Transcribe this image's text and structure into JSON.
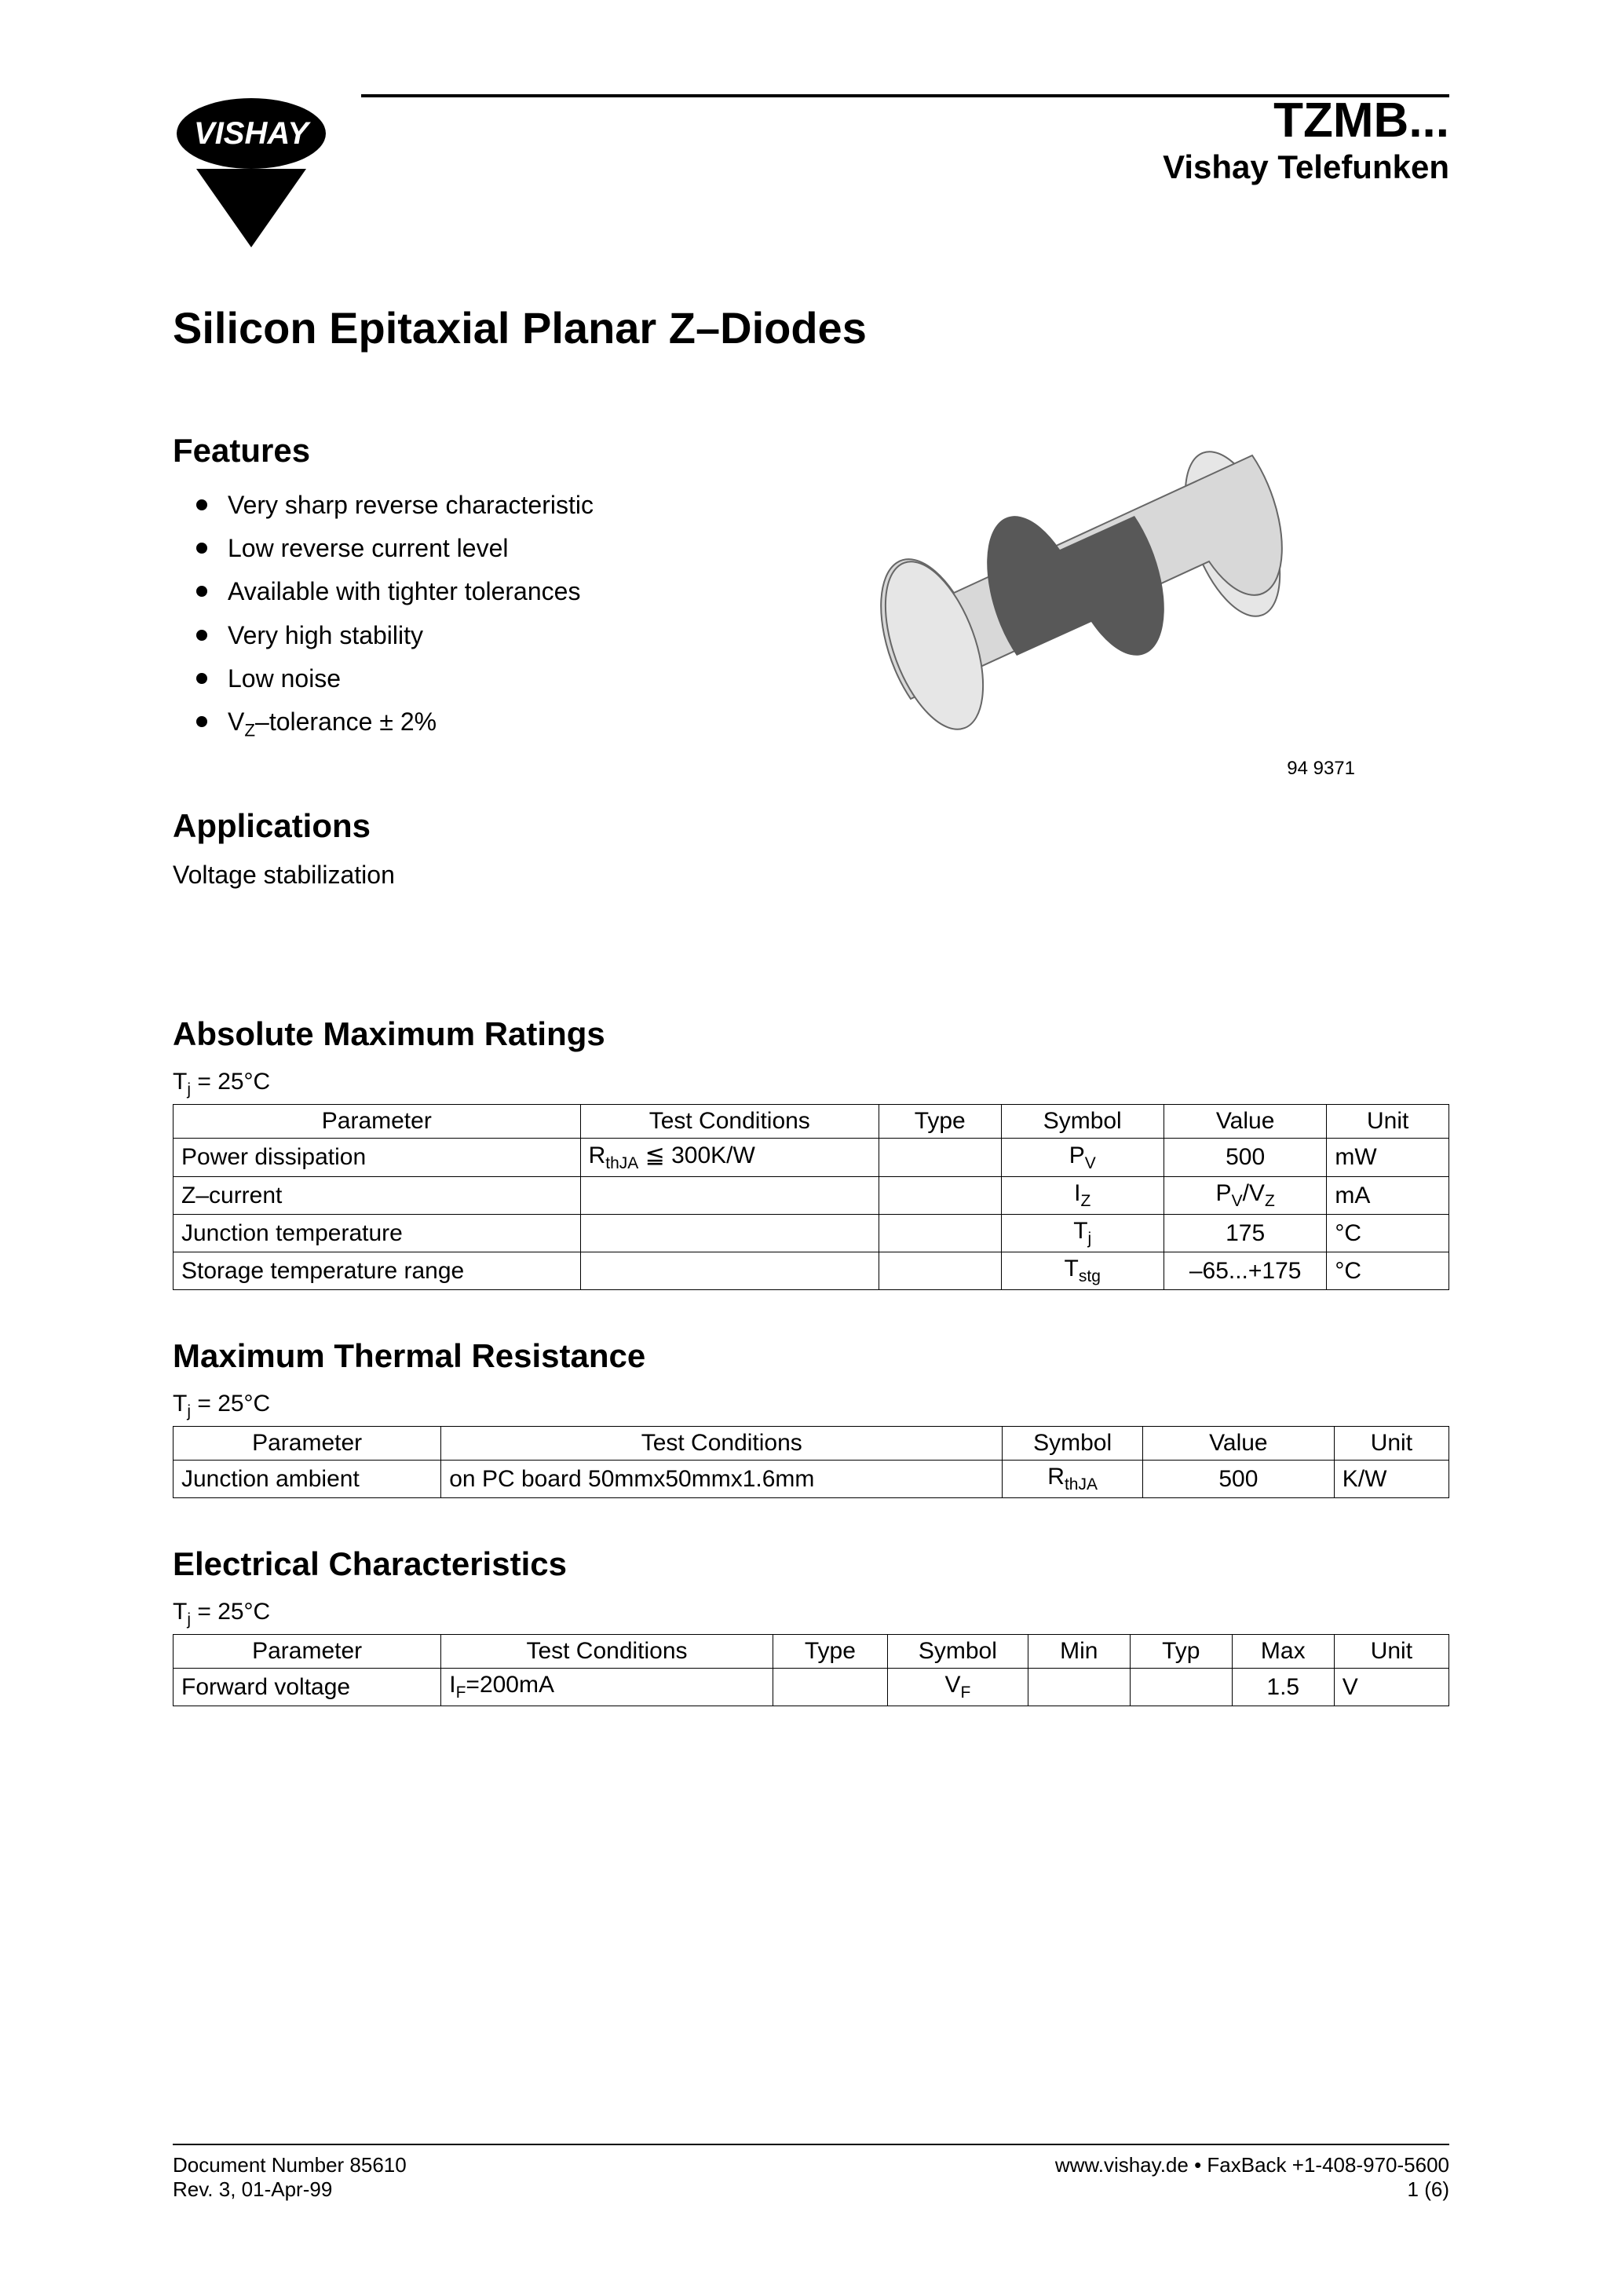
{
  "header": {
    "logo_text": "VISHAY",
    "part_number": "TZMB...",
    "brand": "Vishay Telefunken"
  },
  "title": "Silicon Epitaxial Planar Z–Diodes",
  "features": {
    "heading": "Features",
    "items": [
      "Very sharp reverse characteristic",
      "Low reverse current level",
      "Available with tighter tolerances",
      "Very high stability",
      "Low noise",
      "V_Z–tolerance ± 2%"
    ]
  },
  "component_image": {
    "caption": "94 9371",
    "body_fill": "#d8d8d8",
    "band_fill": "#585858",
    "cap_fill": "#e6e6e6",
    "stroke": "#666666"
  },
  "applications": {
    "heading": "Applications",
    "text": "Voltage stabilization"
  },
  "abs_max": {
    "heading": "Absolute Maximum Ratings",
    "condition": "T_j = 25°C",
    "headers": [
      "Parameter",
      "Test Conditions",
      "Type",
      "Symbol",
      "Value",
      "Unit"
    ],
    "col_widths": [
      "30%",
      "22%",
      "9%",
      "12%",
      "12%",
      "9%"
    ],
    "rows": [
      {
        "parameter": "Power dissipation",
        "test": "R_thJA ≦ 300K/W",
        "type": "",
        "symbol": "P_V",
        "value": "500",
        "unit": "mW"
      },
      {
        "parameter": "Z–current",
        "test": "",
        "type": "",
        "symbol": "I_Z",
        "value": "P_V/V_Z",
        "unit": "mA"
      },
      {
        "parameter": "Junction temperature",
        "test": "",
        "type": "",
        "symbol": "T_j",
        "value": "175",
        "unit": "°C"
      },
      {
        "parameter": "Storage temperature range",
        "test": "",
        "type": "",
        "symbol": "T_stg",
        "value": "–65...+175",
        "unit": "°C"
      }
    ]
  },
  "thermal": {
    "heading": "Maximum Thermal Resistance",
    "condition": "T_j = 25°C",
    "headers": [
      "Parameter",
      "Test Conditions",
      "Symbol",
      "Value",
      "Unit"
    ],
    "col_widths": [
      "21%",
      "44%",
      "11%",
      "15%",
      "9%"
    ],
    "rows": [
      {
        "parameter": "Junction ambient",
        "test": "on PC board 50mmx50mmx1.6mm",
        "symbol": "R_thJA",
        "value": "500",
        "unit": "K/W"
      }
    ]
  },
  "electrical": {
    "heading": "Electrical Characteristics",
    "condition": "T_j = 25°C",
    "headers": [
      "Parameter",
      "Test Conditions",
      "Type",
      "Symbol",
      "Min",
      "Typ",
      "Max",
      "Unit"
    ],
    "col_widths": [
      "21%",
      "26%",
      "9%",
      "11%",
      "8%",
      "8%",
      "8%",
      "9%"
    ],
    "rows": [
      {
        "parameter": "Forward voltage",
        "test": "I_F=200mA",
        "type": "",
        "symbol": "V_F",
        "min": "",
        "typ": "",
        "max": "1.5",
        "unit": "V"
      }
    ]
  },
  "footer": {
    "doc_number": "Document Number 85610",
    "revision": "Rev. 3, 01-Apr-99",
    "website": "www.vishay.de • FaxBack +1-408-970-5600",
    "page": "1 (6)"
  }
}
